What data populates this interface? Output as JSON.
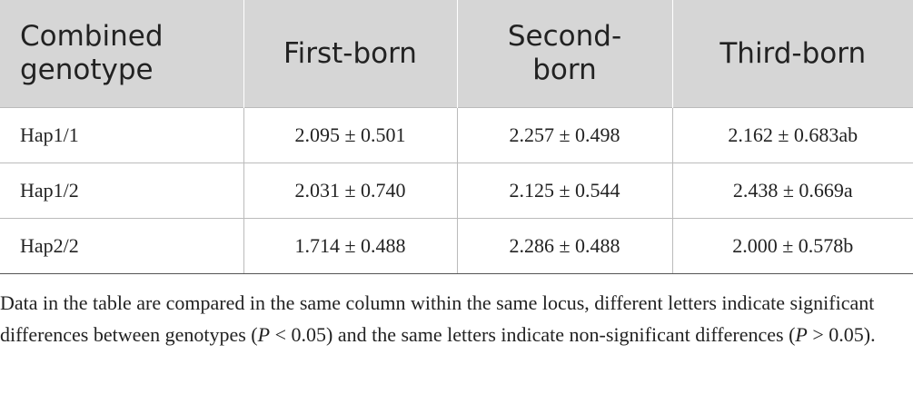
{
  "table": {
    "header": [
      "Combined genotype",
      "First-born",
      "Second-born",
      "Third-born"
    ],
    "rows": [
      [
        "Hap1/1",
        "2.095 ± 0.501",
        "2.257 ± 0.498",
        "2.162 ± 0.683ab"
      ],
      [
        "Hap1/2",
        "2.031 ± 0.740",
        "2.125 ± 0.544",
        "2.438 ± 0.669a"
      ],
      [
        "Hap2/2",
        "1.714 ± 0.488",
        "2.286 ± 0.488",
        "2.000 ± 0.578b"
      ]
    ]
  },
  "footnote": [
    "Data in the table are compared in the same column within the same locus, different letters indicate significant differences between genotypes (",
    "P",
    " < 0.05) and the same letters indicate non-significant differences (",
    "P",
    " > 0.05)."
  ]
}
